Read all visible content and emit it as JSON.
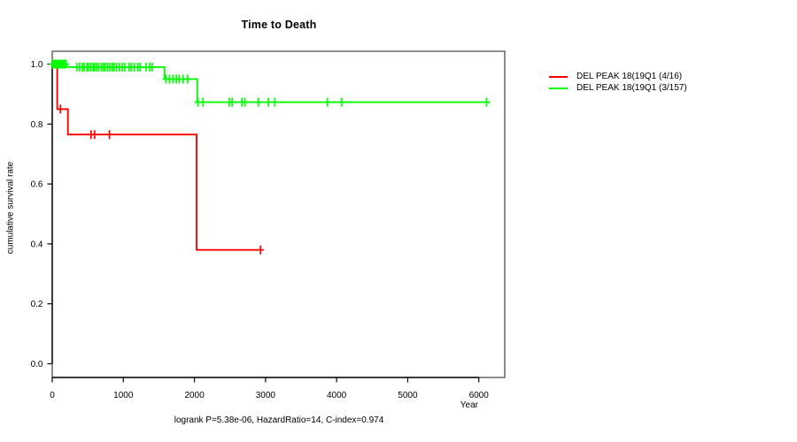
{
  "chart_data": {
    "type": "line",
    "subtype": "kaplan-meier-step",
    "title": "Time to Death",
    "xlabel": "Year",
    "ylabel": "cumulative survival rate",
    "annotation": "logrank P=5.38e-06, HazardRatio=14, C-index=0.974",
    "xlim": [
      0,
      6000
    ],
    "ylim": [
      0.0,
      1.0
    ],
    "x_ticks": [
      "0",
      "1000",
      "2000",
      "3000",
      "4000",
      "5000",
      "6000"
    ],
    "x_tick_values": [
      0,
      1000,
      2000,
      3000,
      4000,
      5000,
      6000
    ],
    "y_ticks": [
      "0.0",
      "0.2",
      "0.4",
      "0.6",
      "0.8",
      "1.0"
    ],
    "y_tick_values": [
      0.0,
      0.2,
      0.4,
      0.6,
      0.8,
      1.0
    ],
    "grid": false,
    "legend_position": "right-outside",
    "series": [
      {
        "name": "DEL PEAK 18(19Q1 (4/16)",
        "color": "#FF0000",
        "steps": [
          [
            0,
            1.0
          ],
          [
            70,
            1.0
          ],
          [
            70,
            0.85
          ],
          [
            220,
            0.85
          ],
          [
            220,
            0.765
          ],
          [
            2030,
            0.765
          ],
          [
            2030,
            0.38
          ],
          [
            2930,
            0.38
          ]
        ],
        "censors": [
          [
            115,
            0.85
          ],
          [
            545,
            0.765
          ],
          [
            595,
            0.765
          ],
          [
            805,
            0.765
          ],
          [
            2930,
            0.38
          ]
        ]
      },
      {
        "name": "DEL PEAK 18(19Q1 (3/157)",
        "color": "#00FF00",
        "steps": [
          [
            0,
            1.0
          ],
          [
            200,
            1.0
          ],
          [
            200,
            0.99
          ],
          [
            1580,
            0.99
          ],
          [
            1580,
            0.95
          ],
          [
            2040,
            0.95
          ],
          [
            2040,
            0.873
          ],
          [
            6110,
            0.873
          ]
        ],
        "censors": [
          [
            5,
            1.0
          ],
          [
            20,
            1.0
          ],
          [
            35,
            1.0
          ],
          [
            50,
            1.0
          ],
          [
            65,
            1.0
          ],
          [
            80,
            1.0
          ],
          [
            95,
            1.0
          ],
          [
            110,
            1.0
          ],
          [
            130,
            1.0
          ],
          [
            150,
            1.0
          ],
          [
            170,
            1.0
          ],
          [
            190,
            1.0
          ],
          [
            345,
            0.99
          ],
          [
            385,
            0.99
          ],
          [
            425,
            0.99
          ],
          [
            450,
            0.99
          ],
          [
            490,
            0.99
          ],
          [
            510,
            0.99
          ],
          [
            540,
            0.99
          ],
          [
            575,
            0.99
          ],
          [
            595,
            0.99
          ],
          [
            625,
            0.99
          ],
          [
            655,
            0.99
          ],
          [
            690,
            0.99
          ],
          [
            720,
            0.99
          ],
          [
            745,
            0.99
          ],
          [
            780,
            0.99
          ],
          [
            810,
            0.99
          ],
          [
            845,
            0.99
          ],
          [
            870,
            0.99
          ],
          [
            905,
            0.99
          ],
          [
            945,
            0.99
          ],
          [
            985,
            0.99
          ],
          [
            1020,
            0.99
          ],
          [
            1080,
            0.99
          ],
          [
            1110,
            0.99
          ],
          [
            1155,
            0.99
          ],
          [
            1205,
            0.99
          ],
          [
            1235,
            0.99
          ],
          [
            1320,
            0.99
          ],
          [
            1370,
            0.99
          ],
          [
            1405,
            0.99
          ],
          [
            1600,
            0.95
          ],
          [
            1650,
            0.95
          ],
          [
            1700,
            0.95
          ],
          [
            1745,
            0.95
          ],
          [
            1785,
            0.95
          ],
          [
            1840,
            0.95
          ],
          [
            1905,
            0.95
          ],
          [
            2050,
            0.873
          ],
          [
            2120,
            0.873
          ],
          [
            2490,
            0.873
          ],
          [
            2530,
            0.873
          ],
          [
            2670,
            0.873
          ],
          [
            2710,
            0.873
          ],
          [
            2900,
            0.873
          ],
          [
            3040,
            0.873
          ],
          [
            3130,
            0.873
          ],
          [
            3870,
            0.873
          ],
          [
            4070,
            0.873
          ],
          [
            6110,
            0.873
          ]
        ]
      }
    ]
  }
}
